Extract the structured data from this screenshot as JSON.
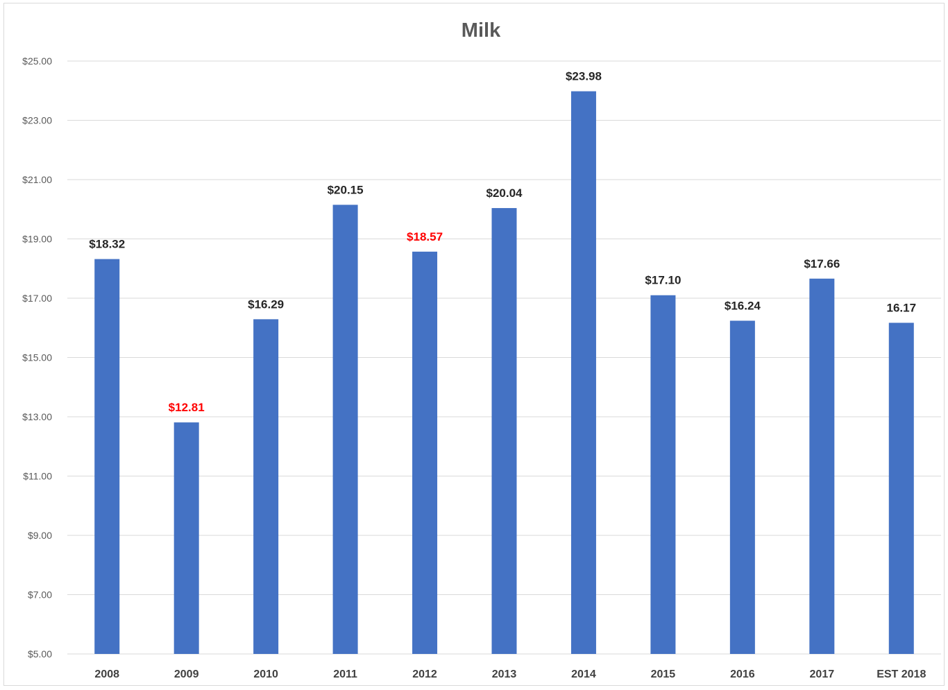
{
  "chart_data": {
    "type": "bar",
    "title": "Milk",
    "xlabel": "",
    "ylabel": "",
    "ylim": [
      5,
      25
    ],
    "grid": true,
    "legend": "none",
    "bar_color": "#4472C4",
    "yticks": [
      "$5.00",
      "$7.00",
      "$9.00",
      "$11.00",
      "$13.00",
      "$15.00",
      "$17.00",
      "$19.00",
      "$21.00",
      "$23.00",
      "$25.00"
    ],
    "ytick_values": [
      5,
      7,
      9,
      11,
      13,
      15,
      17,
      19,
      21,
      23,
      25
    ],
    "categories": [
      "2008",
      "2009",
      "2010",
      "2011",
      "2012",
      "2013",
      "2014",
      "2015",
      "2016",
      "2017",
      "EST 2018"
    ],
    "values": [
      18.32,
      12.81,
      16.29,
      20.15,
      18.57,
      20.04,
      23.98,
      17.1,
      16.24,
      17.66,
      16.17
    ],
    "data_labels": [
      "$18.32",
      "$12.81",
      "$16.29",
      "$20.15",
      "$18.57",
      "$20.04",
      "$23.98",
      "$17.10",
      "$16.24",
      "$17.66",
      "16.17"
    ],
    "label_colors": [
      "#262626",
      "#ff0000",
      "#262626",
      "#262626",
      "#ff0000",
      "#262626",
      "#262626",
      "#262626",
      "#262626",
      "#262626",
      "#262626"
    ]
  }
}
